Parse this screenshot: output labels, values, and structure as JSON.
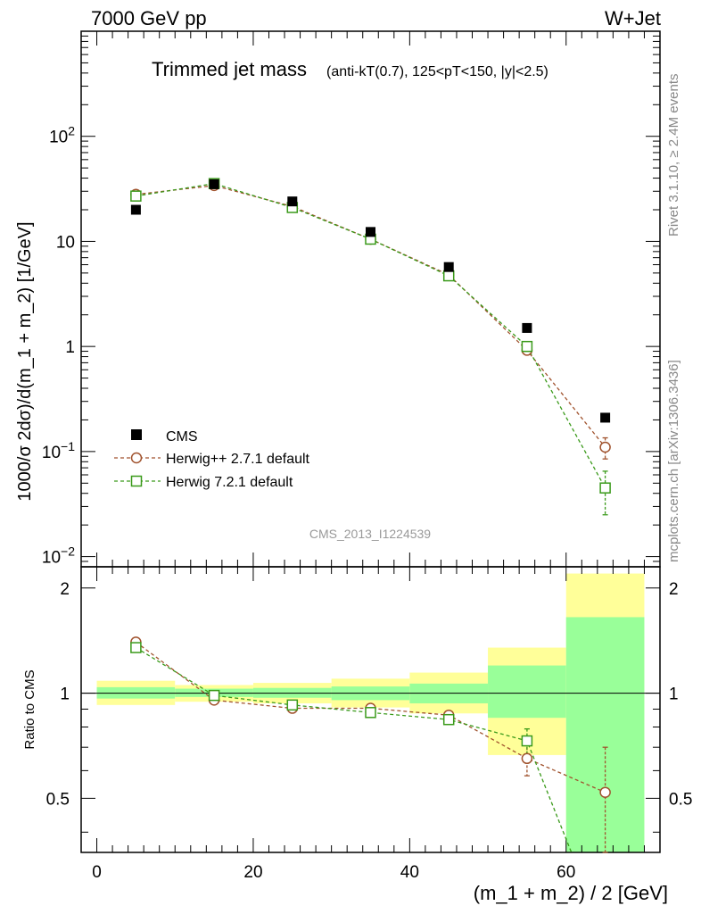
{
  "header": {
    "left": "7000 GeV pp",
    "right": "W+Jet"
  },
  "side_labels": {
    "rivet": "Rivet 3.1.10, ≥ 2.4M events",
    "mcplots": "mcplots.cern.ch [arXiv:1306.3436]"
  },
  "chart_data": {
    "type": "scatter",
    "title_main": "Trimmed jet mass",
    "title_detail": "(anti-kT(0.7), 125<pT<150, |y|<2.5)",
    "watermark": "CMS_2013_I1224539",
    "xlabel": "(m_1 + m_2) / 2 [GeV]",
    "ylabel_top": "1000/σ 2dσ)/d(m_1 + m_2) [1/GeV]",
    "ylabel_bottom": "Ratio to CMS",
    "xlim": [
      -2,
      72
    ],
    "ylim_top": [
      0.008,
      1000
    ],
    "ylim_top_scale": "log",
    "ylim_bottom": [
      0.35,
      2.3
    ],
    "ylim_bottom_scale": "log",
    "x_ticks": [
      0,
      20,
      40,
      60
    ],
    "top_tick_labels": [
      "10^-2",
      "10^-1",
      "1",
      "10",
      "10^2"
    ],
    "bottom_tick_labels": [
      "0.5",
      "1",
      "2"
    ],
    "legend_position": "bottom-left",
    "colors": {
      "cms": "#000000",
      "herwigpp": "#a0522d",
      "herwig7": "#3a9a1a",
      "band_inner": "#99ff99",
      "band_outer": "#ffff99"
    },
    "series": [
      {
        "name": "CMS",
        "marker": "filled-square",
        "x": [
          5,
          15,
          25,
          35,
          45,
          55,
          65
        ],
        "y": [
          20,
          35,
          24,
          12.3,
          5.7,
          1.5,
          0.21
        ]
      },
      {
        "name": "Herwig++ 2.7.1 default",
        "marker": "open-circle",
        "x": [
          5,
          15,
          25,
          35,
          45,
          55,
          65
        ],
        "y": [
          28,
          34,
          21.5,
          10.5,
          4.8,
          0.92,
          0.11
        ],
        "y_err": [
          0,
          0,
          0,
          0,
          0,
          0.04,
          0.025
        ],
        "ratio": [
          1.4,
          0.955,
          0.905,
          0.905,
          0.865,
          0.65,
          0.52
        ],
        "ratio_err": [
          0,
          0,
          0,
          0,
          0.02,
          0.07,
          0.18
        ]
      },
      {
        "name": "Herwig 7.2.1 default",
        "marker": "open-square",
        "x": [
          5,
          15,
          25,
          35,
          45,
          55,
          65
        ],
        "y": [
          27,
          35.5,
          21,
          10.5,
          4.7,
          1.0,
          0.045
        ],
        "y_err": [
          0,
          0,
          0,
          0,
          0,
          0.05,
          0.02
        ],
        "ratio": [
          1.35,
          0.985,
          0.925,
          0.88,
          0.84,
          0.73,
          0.2
        ],
        "ratio_err": [
          0,
          0,
          0,
          0,
          0.02,
          0.06,
          0.1
        ]
      }
    ],
    "bands": [
      {
        "x0": 0,
        "x1": 10,
        "inner": [
          0.965,
          1.04
        ],
        "outer": [
          0.925,
          1.085
        ]
      },
      {
        "x0": 10,
        "x1": 20,
        "inner": [
          0.975,
          1.03
        ],
        "outer": [
          0.945,
          1.055
        ]
      },
      {
        "x0": 20,
        "x1": 30,
        "inner": [
          0.97,
          1.035
        ],
        "outer": [
          0.935,
          1.07
        ]
      },
      {
        "x0": 30,
        "x1": 40,
        "inner": [
          0.955,
          1.045
        ],
        "outer": [
          0.91,
          1.1
        ]
      },
      {
        "x0": 40,
        "x1": 50,
        "inner": [
          0.935,
          1.065
        ],
        "outer": [
          0.875,
          1.145
        ]
      },
      {
        "x0": 50,
        "x1": 60,
        "inner": [
          0.85,
          1.2
        ],
        "outer": [
          0.665,
          1.35
        ]
      },
      {
        "x0": 60,
        "x1": 70,
        "inner": [
          0.35,
          1.65
        ],
        "outer": [
          0.35,
          2.2
        ]
      }
    ]
  }
}
